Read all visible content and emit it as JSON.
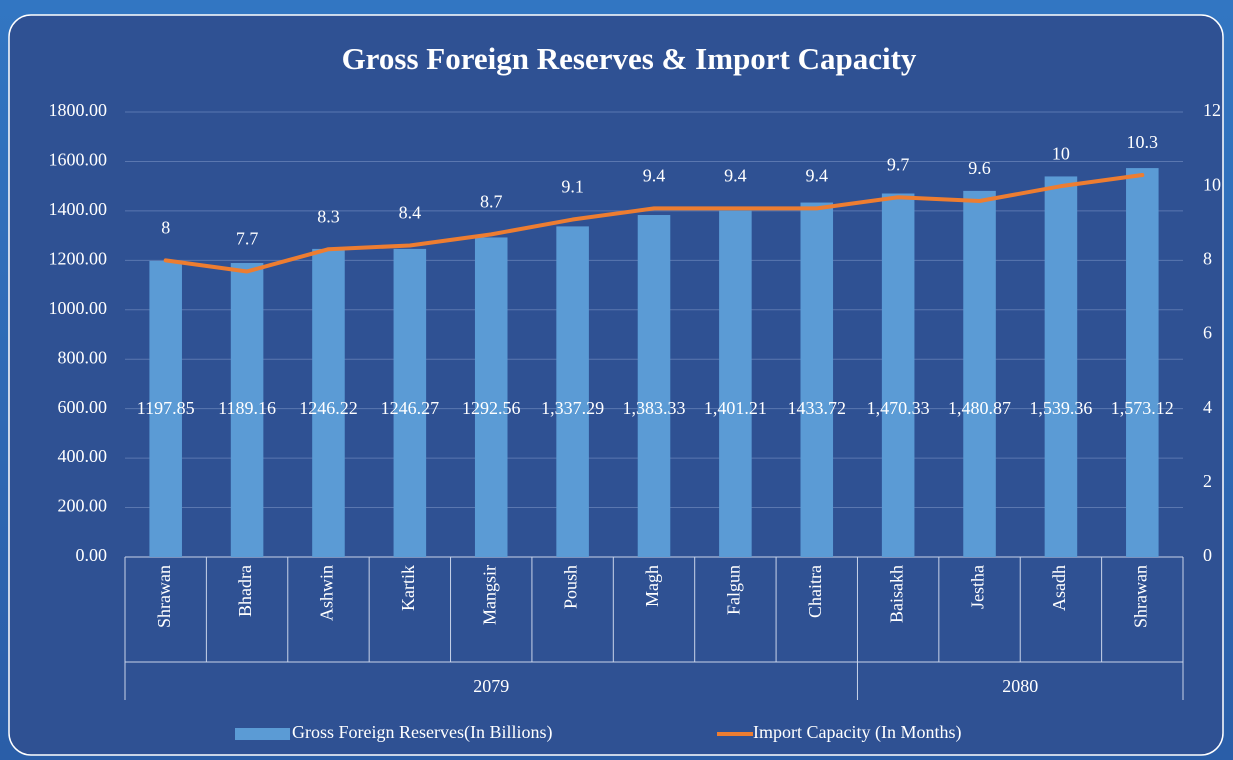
{
  "chart_data": {
    "type": "bar_line",
    "title": "Gross Foreign Reserves & Import Capacity",
    "groups": [
      {
        "label": "2079",
        "categories": [
          "Shrawan",
          "Bhadra",
          "Ashwin",
          "Kartik",
          "Mangsir",
          "Poush",
          "Magh",
          "Falgun",
          "Chaitra"
        ]
      },
      {
        "label": "2080",
        "categories": [
          "Baisakh",
          "Jestha",
          "Asadh",
          "Shrawan"
        ]
      }
    ],
    "series": [
      {
        "name": "Gross Foreign Reserves(In Billions)",
        "type": "bar",
        "color": "#5b9bd5",
        "values": [
          1197.85,
          1189.16,
          1246.22,
          1246.27,
          1292.56,
          1337.29,
          1383.33,
          1401.21,
          1433.72,
          1470.33,
          1480.87,
          1539.36,
          1573.12
        ],
        "value_labels": [
          "1197.85",
          "1189.16",
          "1246.22",
          "1246.27",
          "1292.56",
          "1,337.29",
          "1,383.33",
          "1,401.21",
          "1433.72",
          "1,470.33",
          "1,480.87",
          "1,539.36",
          "1,573.12"
        ]
      },
      {
        "name": "Import Capacity (In Months)",
        "type": "line",
        "axis": "y2",
        "color": "#ed7d31",
        "values": [
          8,
          7.7,
          8.3,
          8.4,
          8.7,
          9.1,
          9.4,
          9.4,
          9.4,
          9.7,
          9.6,
          10,
          10.3
        ]
      }
    ],
    "ylim": [
      0,
      1800
    ],
    "yticks": [
      {
        "value": 0,
        "label": "0.00"
      },
      {
        "value": 200,
        "label": "200.00"
      },
      {
        "value": 400,
        "label": "400.00"
      },
      {
        "value": 600,
        "label": "600.00"
      },
      {
        "value": 800,
        "label": "800.00"
      },
      {
        "value": 1000,
        "label": "1000.00"
      },
      {
        "value": 1200,
        "label": "1200.00"
      },
      {
        "value": 1400,
        "label": "1400.00"
      },
      {
        "value": 1600,
        "label": "1600.00"
      },
      {
        "value": 1800,
        "label": "1800.00"
      }
    ],
    "y2lim": [
      0,
      12
    ],
    "y2ticks": [
      0,
      2,
      4,
      6,
      8,
      10,
      12
    ],
    "grid": true,
    "legend": "bottom"
  }
}
